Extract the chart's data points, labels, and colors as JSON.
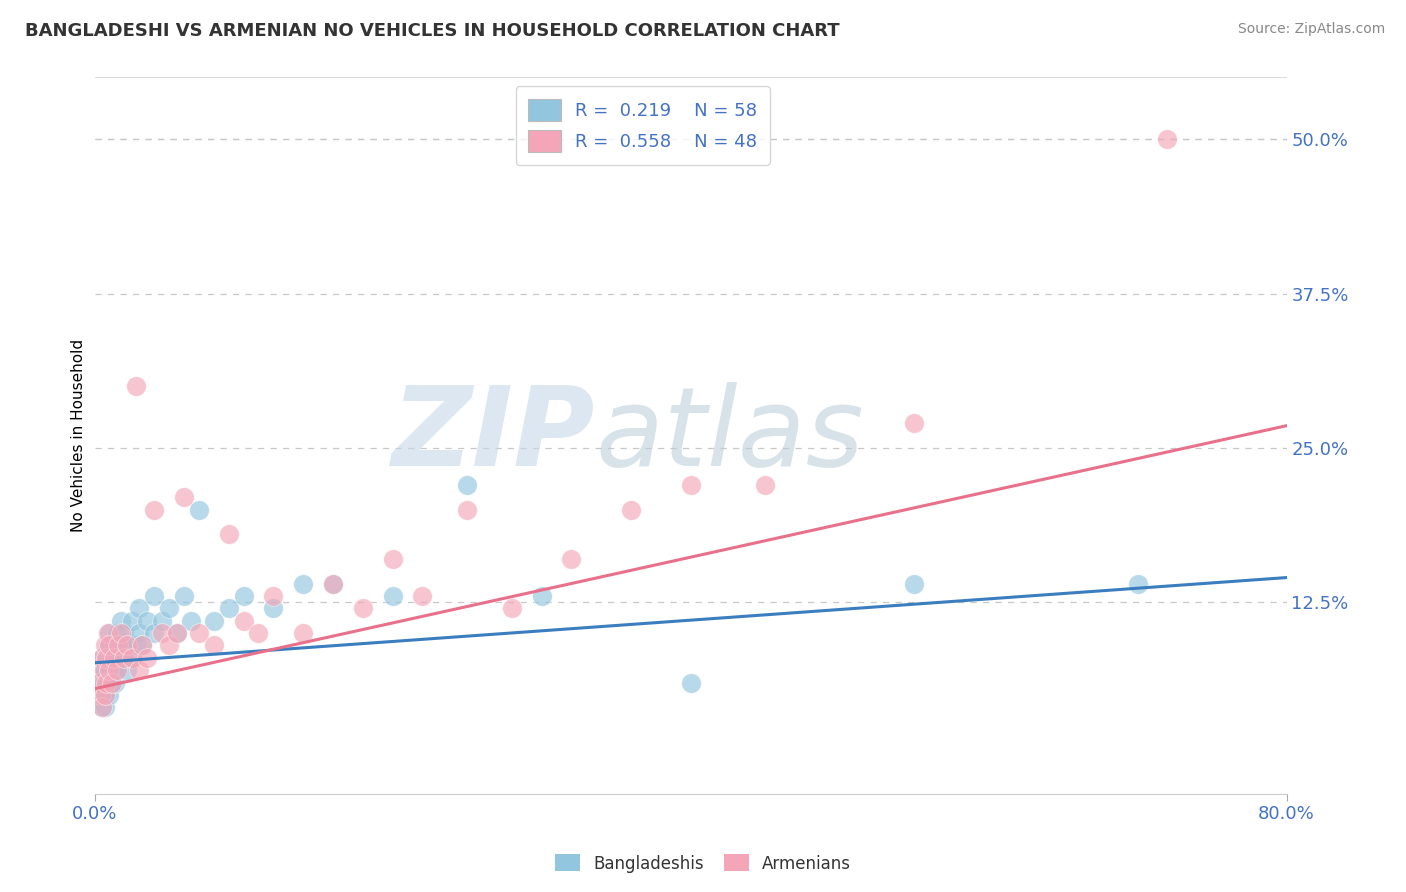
{
  "title": "BANGLADESHI VS ARMENIAN NO VEHICLES IN HOUSEHOLD CORRELATION CHART",
  "source": "Source: ZipAtlas.com",
  "ylabel": "No Vehicles in Household",
  "watermark_zip": "ZIP",
  "watermark_atlas": "atlas",
  "bangladeshi_R": 0.219,
  "bangladeshi_N": 58,
  "armenian_R": 0.558,
  "armenian_N": 48,
  "xlim": [
    0.0,
    0.8
  ],
  "ylim": [
    -0.03,
    0.55
  ],
  "yticks": [
    0.0,
    0.125,
    0.25,
    0.375,
    0.5
  ],
  "ytick_labels": [
    "",
    "12.5%",
    "25.0%",
    "37.5%",
    "50.0%"
  ],
  "blue_color": "#92c5de",
  "pink_color": "#f4a6b8",
  "blue_line_color": "#3a7ebf",
  "pink_line_color": "#e8708a",
  "background_color": "#ffffff",
  "grid_color": "#c8c8c8",
  "bangladeshi_x": [
    0.003,
    0.004,
    0.004,
    0.005,
    0.005,
    0.006,
    0.006,
    0.007,
    0.007,
    0.008,
    0.008,
    0.009,
    0.009,
    0.01,
    0.01,
    0.01,
    0.01,
    0.012,
    0.012,
    0.013,
    0.013,
    0.014,
    0.015,
    0.015,
    0.016,
    0.018,
    0.018,
    0.02,
    0.02,
    0.022,
    0.022,
    0.025,
    0.025,
    0.028,
    0.03,
    0.03,
    0.032,
    0.035,
    0.04,
    0.04,
    0.045,
    0.05,
    0.055,
    0.06,
    0.065,
    0.07,
    0.08,
    0.09,
    0.1,
    0.12,
    0.14,
    0.16,
    0.2,
    0.25,
    0.3,
    0.4,
    0.55,
    0.7
  ],
  "bangladeshi_y": [
    0.06,
    0.05,
    0.07,
    0.04,
    0.08,
    0.05,
    0.06,
    0.04,
    0.07,
    0.05,
    0.08,
    0.06,
    0.09,
    0.05,
    0.07,
    0.09,
    0.1,
    0.06,
    0.08,
    0.07,
    0.09,
    0.06,
    0.08,
    0.1,
    0.07,
    0.09,
    0.11,
    0.08,
    0.1,
    0.07,
    0.09,
    0.08,
    0.11,
    0.09,
    0.1,
    0.12,
    0.09,
    0.11,
    0.1,
    0.13,
    0.11,
    0.12,
    0.1,
    0.13,
    0.11,
    0.2,
    0.11,
    0.12,
    0.13,
    0.12,
    0.14,
    0.14,
    0.13,
    0.22,
    0.13,
    0.06,
    0.14,
    0.14
  ],
  "armenian_x": [
    0.003,
    0.004,
    0.005,
    0.005,
    0.006,
    0.007,
    0.007,
    0.008,
    0.008,
    0.009,
    0.01,
    0.01,
    0.012,
    0.013,
    0.015,
    0.016,
    0.018,
    0.02,
    0.022,
    0.025,
    0.028,
    0.03,
    0.032,
    0.035,
    0.04,
    0.045,
    0.05,
    0.055,
    0.06,
    0.07,
    0.08,
    0.09,
    0.1,
    0.11,
    0.12,
    0.14,
    0.16,
    0.18,
    0.2,
    0.22,
    0.25,
    0.28,
    0.32,
    0.36,
    0.4,
    0.45,
    0.55,
    0.72
  ],
  "armenian_y": [
    0.06,
    0.05,
    0.08,
    0.04,
    0.07,
    0.05,
    0.09,
    0.06,
    0.08,
    0.1,
    0.07,
    0.09,
    0.06,
    0.08,
    0.07,
    0.09,
    0.1,
    0.08,
    0.09,
    0.08,
    0.3,
    0.07,
    0.09,
    0.08,
    0.2,
    0.1,
    0.09,
    0.1,
    0.21,
    0.1,
    0.09,
    0.18,
    0.11,
    0.1,
    0.13,
    0.1,
    0.14,
    0.12,
    0.16,
    0.13,
    0.2,
    0.12,
    0.16,
    0.2,
    0.22,
    0.22,
    0.27,
    0.5
  ],
  "blue_trendline": [
    0.076,
    0.145
  ],
  "pink_trendline": [
    0.055,
    0.268
  ]
}
